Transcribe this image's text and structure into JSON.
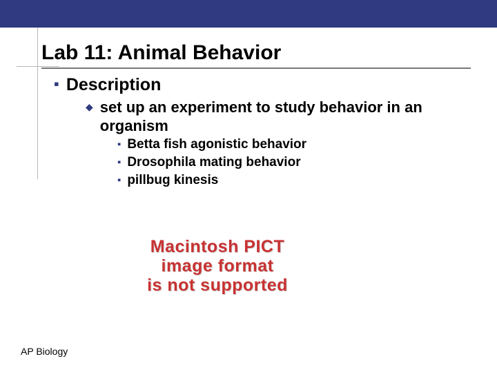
{
  "colors": {
    "topbar": "#2f3a80",
    "bullet": "#2f3a80",
    "title_underline": "#777777",
    "decor_line": "#b8b8b8",
    "error_text": "#c83232",
    "background": "#ffffff",
    "text": "#000000"
  },
  "title": "Lab 11: Animal Behavior",
  "level1": {
    "label": "Description"
  },
  "level2": {
    "label": "set up an experiment to study behavior in an organism"
  },
  "level3": [
    {
      "label": "Betta fish agonistic behavior"
    },
    {
      "label": "Drosophila mating behavior"
    },
    {
      "label": "pillbug kinesis"
    }
  ],
  "missing_image": {
    "line1": "Macintosh PICT",
    "line2": "image format",
    "line3": "is not supported"
  },
  "footer": "AP Biology",
  "fonts": {
    "title_size_pt": 30,
    "lvl1_size_pt": 25,
    "lvl2_size_pt": 22,
    "lvl3_size_pt": 19,
    "footer_size_pt": 14,
    "family": "Arial"
  }
}
